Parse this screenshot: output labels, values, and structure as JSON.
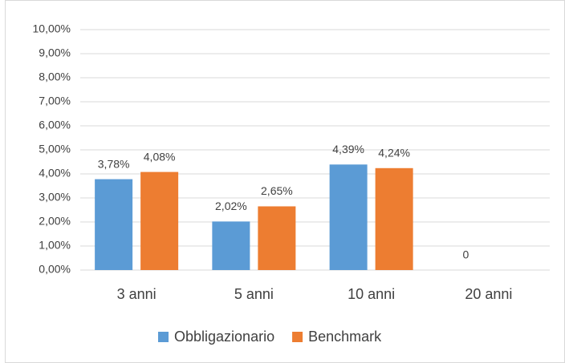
{
  "chart_data": {
    "type": "bar",
    "categories": [
      "3 anni",
      "5 anni",
      "10 anni",
      "20 anni"
    ],
    "series": [
      {
        "name": "Obbligazionario",
        "color": "#5b9bd5",
        "values": [
          3.78,
          2.02,
          4.39,
          0
        ],
        "value_labels": [
          "3,78%",
          "2,02%",
          "4,39%",
          "0"
        ]
      },
      {
        "name": "Benchmark",
        "color": "#ed7d31",
        "values": [
          4.08,
          2.65,
          4.24,
          null
        ],
        "value_labels": [
          "4,08%",
          "2,65%",
          "4,24%",
          null
        ]
      }
    ],
    "ylim": [
      0,
      10
    ],
    "yticks": [
      {
        "value": 0,
        "label": "0,00%"
      },
      {
        "value": 1,
        "label": "1,00%"
      },
      {
        "value": 2,
        "label": "2,00%"
      },
      {
        "value": 3,
        "label": "3,00%"
      },
      {
        "value": 4,
        "label": "4,00%"
      },
      {
        "value": 5,
        "label": "5,00%"
      },
      {
        "value": 6,
        "label": "6,00%"
      },
      {
        "value": 7,
        "label": "7,00%"
      },
      {
        "value": 8,
        "label": "8,00%"
      },
      {
        "value": 9,
        "label": "9,00%"
      },
      {
        "value": 10,
        "label": "10,00%"
      }
    ],
    "grid": true,
    "legend": "bottom"
  }
}
